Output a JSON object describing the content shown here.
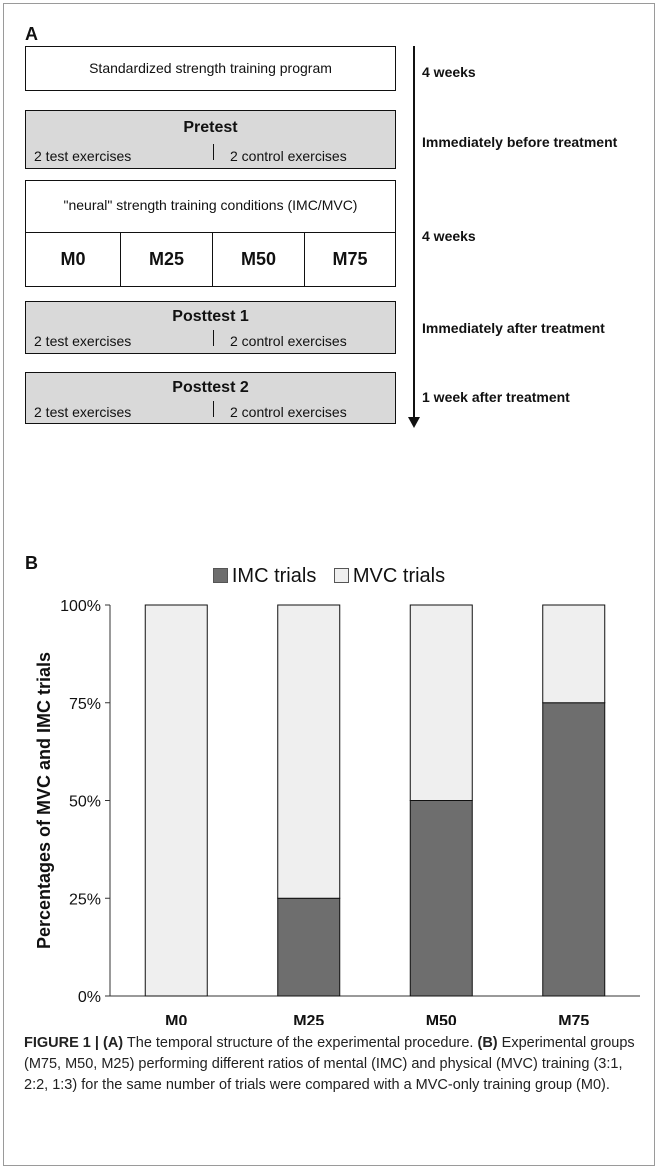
{
  "panel_a": {
    "letter": "A",
    "program_box": "Standardized strength training program",
    "pretest": {
      "title": "Pretest",
      "left": "2 test exercises",
      "right": "2 control exercises"
    },
    "conditions_box": "\"neural\" strength training conditions (IMC/MVC)",
    "groups": [
      "M0",
      "M25",
      "M50",
      "M75"
    ],
    "posttest1": {
      "title": "Posttest 1",
      "left": "2 test exercises",
      "right": "2 control exercises"
    },
    "posttest2": {
      "title": "Posttest 2",
      "left": "2 test exercises",
      "right": "2 control exercises"
    },
    "timeline": {
      "t1": "4 weeks",
      "t2": "Immediately  before treatment",
      "t3": "4 weeks",
      "t4": "Immediately  after treatment",
      "t5": "1 week after treatment"
    }
  },
  "panel_b": {
    "letter": "B"
  },
  "chart_data": {
    "type": "bar",
    "stacked": true,
    "categories": [
      "M0",
      "M25",
      "M50",
      "M75"
    ],
    "series": [
      {
        "name": "IMC trials",
        "values": [
          0,
          25,
          50,
          75
        ],
        "color": "#6e6e6e"
      },
      {
        "name": "MVC trials",
        "values": [
          100,
          75,
          50,
          25
        ],
        "color": "#efefef"
      }
    ],
    "ylabel": "Percentages of MVC and IMC trials",
    "ylim": [
      0,
      100
    ],
    "yticks": [
      0,
      25,
      50,
      75,
      100
    ],
    "ytick_labels": [
      "0%",
      "25%",
      "50%",
      "75%",
      "100%"
    ],
    "legend_position": "top-center",
    "grid": false
  },
  "caption": {
    "label": "FIGURE 1 | (A)",
    "text_a": " The temporal structure of the experimental procedure. ",
    "label_b": "(B)",
    "text_b": " Experimental groups (M75, M50, M25) performing different ratios of mental (IMC) and physical (MVC) training (3:1, 2:2, 1:3) for the same number of trials were compared with a MVC-only training group (M0)."
  }
}
